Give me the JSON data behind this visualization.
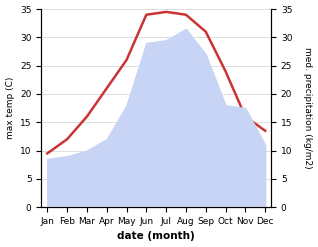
{
  "months": [
    "Jan",
    "Feb",
    "Mar",
    "Apr",
    "May",
    "Jun",
    "Jul",
    "Aug",
    "Sep",
    "Oct",
    "Nov",
    "Dec"
  ],
  "temp": [
    9.5,
    12.0,
    16.0,
    21.0,
    26.0,
    34.0,
    34.5,
    34.0,
    31.0,
    24.0,
    16.0,
    13.5
  ],
  "precip": [
    8.5,
    9.0,
    10.0,
    12.0,
    18.0,
    29.0,
    29.5,
    31.5,
    27.0,
    18.0,
    17.5,
    11.0
  ],
  "temp_color": "#cc3333",
  "precip_fill_color": "#c8d4f5",
  "ylim_left": [
    0,
    35
  ],
  "ylim_right": [
    0,
    35
  ],
  "xlabel": "date (month)",
  "ylabel_left": "max temp (C)",
  "ylabel_right": "med. precipitation (kg/m2)",
  "background_color": "#ffffff",
  "grid_color": "#d0d0d0",
  "tick_fontsize": 6.5,
  "label_fontsize": 6.5
}
